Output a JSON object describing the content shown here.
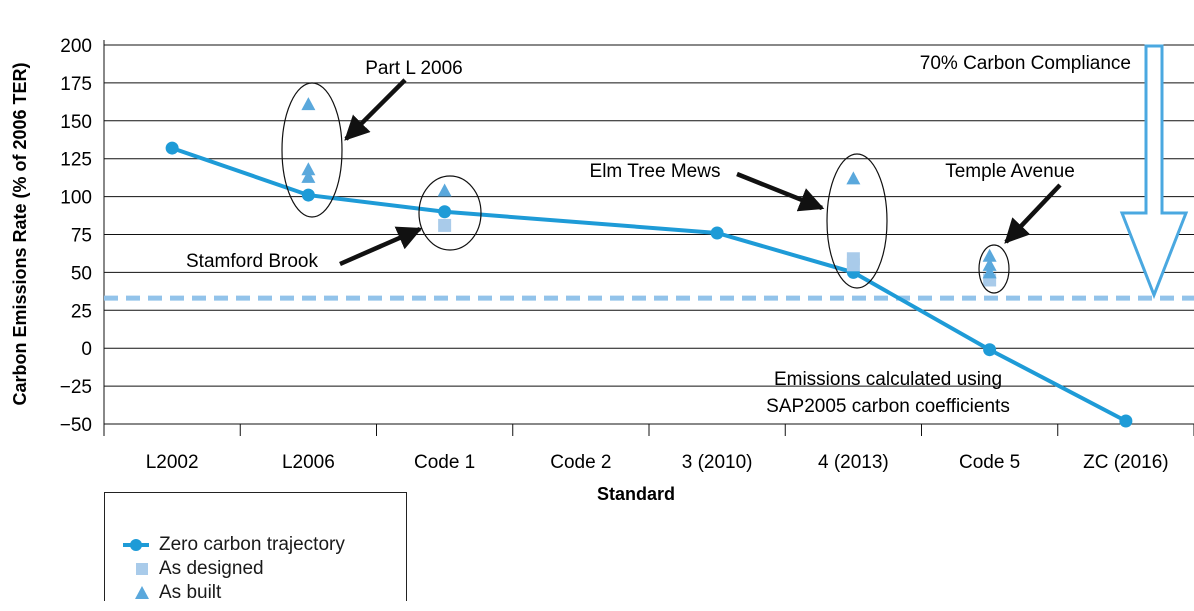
{
  "chart_data": {
    "type": "line",
    "title": "",
    "xlabel": "Standard",
    "ylabel": "Carbon Emissions Rate (% of 2006 TER)",
    "ylim": [
      -50,
      200
    ],
    "yticks": [
      "200",
      "175",
      "150",
      "125",
      "100",
      "75",
      "50",
      "25",
      "0",
      "−25",
      "−50"
    ],
    "ytick_values": [
      200,
      175,
      150,
      125,
      100,
      75,
      50,
      25,
      0,
      -25,
      -50
    ],
    "categories": [
      "L2002",
      "L2006",
      "Code 1",
      "Code 2",
      "3 (2010)",
      "4 (2013)",
      "Code 5",
      "ZC (2016)"
    ],
    "grid": "horizontal",
    "series": [
      {
        "name": "Zero carbon trajectory",
        "kind": "line-markers",
        "color": "#1e9bd7",
        "points": [
          {
            "x": "L2002",
            "y": 132
          },
          {
            "x": "L2006",
            "y": 101
          },
          {
            "x": "Code 1",
            "y": 90
          },
          {
            "x": "3 (2010)",
            "y": 76
          },
          {
            "x": "4 (2013)",
            "y": 50
          },
          {
            "x": "Code 5",
            "y": -1
          },
          {
            "x": "ZC (2016)",
            "y": -48
          }
        ]
      },
      {
        "name": "As designed",
        "kind": "square",
        "color": "#a9cbea",
        "points": [
          {
            "x": "Code 1",
            "y": 81
          },
          {
            "x": "4 (2013)",
            "y": 59
          },
          {
            "x": "4 (2013)",
            "y": 55
          },
          {
            "x": "Code 5",
            "y": 45
          }
        ]
      },
      {
        "name": "As built",
        "kind": "triangle",
        "color": "#5aa8dc",
        "points": [
          {
            "x": "L2006",
            "y": 161
          },
          {
            "x": "L2006",
            "y": 118
          },
          {
            "x": "L2006",
            "y": 113
          },
          {
            "x": "Code 1",
            "y": 104
          },
          {
            "x": "4 (2013)",
            "y": 112
          },
          {
            "x": "Code 5",
            "y": 61
          },
          {
            "x": "Code 5",
            "y": 55
          },
          {
            "x": "Code 5",
            "y": 50
          }
        ]
      }
    ],
    "reference_lines": [
      {
        "y": 33,
        "style": "dashed",
        "color": "#92c3ea"
      }
    ],
    "annotations": [
      {
        "text": "Part L 2006"
      },
      {
        "text": "Stamford Brook"
      },
      {
        "text": "Elm Tree Mews"
      },
      {
        "text": "Temple Avenue"
      },
      {
        "text": "70% Carbon Compliance"
      },
      {
        "text": "Emissions calculated using"
      },
      {
        "text": "SAP2005 carbon coefficients"
      }
    ],
    "legend_position": "bottom-left"
  },
  "colors": {
    "trajectory": "#1e9bd7",
    "designed": "#a9cbea",
    "built": "#5aa8dc",
    "dashed_line": "#92c3ea",
    "arrow_outline": "#4aa8e0"
  }
}
